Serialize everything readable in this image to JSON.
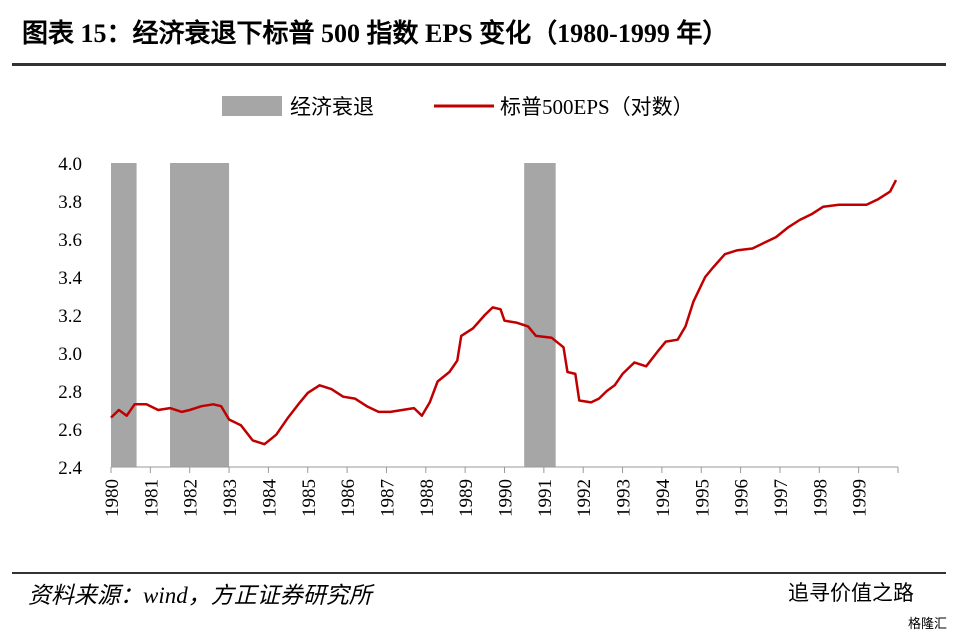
{
  "chart_data": {
    "type": "line",
    "title": "图表 15：经济衰退下标普 500 指数 EPS 变化（1980-1999 年）",
    "source": "资料来源：wind，方正证券研究所",
    "watermark": "追寻价值之路",
    "logo": "格隆汇",
    "recession_name": "经济衰退",
    "recession_color": "#a6a6a6",
    "recessions": [
      {
        "start": 1980.0,
        "end": 1980.65
      },
      {
        "start": 1981.5,
        "end": 1983.0
      },
      {
        "start": 1990.5,
        "end": 1991.3
      }
    ],
    "xlim": [
      1980,
      2000
    ],
    "xticks": [
      1980,
      1981,
      1982,
      1983,
      1984,
      1985,
      1986,
      1987,
      1988,
      1989,
      1990,
      1991,
      1992,
      1993,
      1994,
      1995,
      1996,
      1997,
      1998,
      1999
    ],
    "ylim": [
      2.4,
      4.0
    ],
    "yticks": [
      {
        "value": 2.4,
        "label": "2.4"
      },
      {
        "value": 2.6,
        "label": "2.6"
      },
      {
        "value": 2.8,
        "label": "2.8"
      },
      {
        "value": 3.0,
        "label": "3.0"
      },
      {
        "value": 3.2,
        "label": "3.2"
      },
      {
        "value": 3.4,
        "label": "3.4"
      },
      {
        "value": 3.6,
        "label": "3.6"
      },
      {
        "value": 3.8,
        "label": "3.8"
      },
      {
        "value": 4.0,
        "label": "4.0"
      }
    ],
    "legend": "top",
    "series": [
      {
        "name": "标普500EPS（对数）",
        "color": "#c00000",
        "x": [
          1980.0,
          1980.2,
          1980.4,
          1980.6,
          1980.9,
          1981.2,
          1981.5,
          1981.8,
          1982.0,
          1982.3,
          1982.6,
          1982.8,
          1983.0,
          1983.3,
          1983.6,
          1983.9,
          1984.2,
          1984.5,
          1984.8,
          1985.0,
          1985.3,
          1985.6,
          1985.9,
          1986.2,
          1986.5,
          1986.8,
          1987.1,
          1987.4,
          1987.7,
          1987.9,
          1988.1,
          1988.3,
          1988.6,
          1988.8,
          1988.9,
          1989.2,
          1989.5,
          1989.7,
          1989.9,
          1990.0,
          1990.3,
          1990.6,
          1990.8,
          1991.2,
          1991.5,
          1991.6,
          1991.8,
          1991.9,
          1992.2,
          1992.4,
          1992.6,
          1992.8,
          1993.0,
          1993.3,
          1993.6,
          1993.9,
          1994.1,
          1994.4,
          1994.6,
          1994.8,
          1995.1,
          1995.3,
          1995.6,
          1995.9,
          1996.3,
          1996.6,
          1996.9,
          1997.2,
          1997.5,
          1997.8,
          1998.1,
          1998.5,
          1998.9,
          1999.2,
          1999.5,
          1999.8,
          1999.95
        ],
        "values": [
          2.66,
          2.7,
          2.67,
          2.73,
          2.73,
          2.7,
          2.71,
          2.69,
          2.7,
          2.72,
          2.73,
          2.72,
          2.65,
          2.62,
          2.54,
          2.52,
          2.57,
          2.66,
          2.74,
          2.79,
          2.83,
          2.81,
          2.77,
          2.76,
          2.72,
          2.69,
          2.69,
          2.7,
          2.71,
          2.67,
          2.74,
          2.85,
          2.9,
          2.96,
          3.09,
          3.13,
          3.2,
          3.24,
          3.23,
          3.17,
          3.16,
          3.14,
          3.09,
          3.08,
          3.03,
          2.9,
          2.89,
          2.75,
          2.74,
          2.76,
          2.8,
          2.83,
          2.89,
          2.95,
          2.93,
          3.01,
          3.06,
          3.07,
          3.14,
          3.27,
          3.4,
          3.45,
          3.52,
          3.54,
          3.55,
          3.58,
          3.61,
          3.66,
          3.7,
          3.73,
          3.77,
          3.78,
          3.78,
          3.78,
          3.81,
          3.85,
          3.91
        ]
      }
    ]
  }
}
